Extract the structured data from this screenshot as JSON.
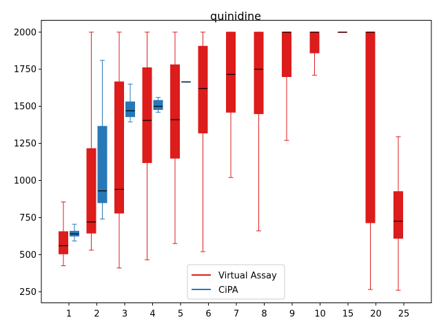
{
  "chart_data": {
    "type": "box",
    "title": "quinidine",
    "xlabel": "",
    "ylabel": "",
    "categories": [
      "1",
      "2",
      "3",
      "4",
      "5",
      "6",
      "7",
      "8",
      "9",
      "10",
      "15",
      "20",
      "25"
    ],
    "ylim": [
      175,
      2080
    ],
    "yticks": [
      250,
      500,
      750,
      1000,
      1250,
      1500,
      1750,
      2000
    ],
    "grid": false,
    "legend_position": "lower-center",
    "series": [
      {
        "name": "Virtual Assay",
        "color": "#dd1c1c",
        "boxes": [
          {
            "category": "1",
            "whisker_low": 425,
            "q1": 505,
            "median": 560,
            "q3": 655,
            "whisker_high": 855
          },
          {
            "category": "2",
            "whisker_low": 530,
            "q1": 645,
            "median": 720,
            "q3": 1215,
            "whisker_high": 2000
          },
          {
            "category": "3",
            "whisker_low": 410,
            "q1": 780,
            "median": 940,
            "q3": 1665,
            "whisker_high": 2000
          },
          {
            "category": "4",
            "whisker_low": 465,
            "q1": 1120,
            "median": 1405,
            "q3": 1760,
            "whisker_high": 2000
          },
          {
            "category": "5",
            "whisker_low": 575,
            "q1": 1150,
            "median": 1410,
            "q3": 1780,
            "whisker_high": 2000
          },
          {
            "category": "6",
            "whisker_low": 520,
            "q1": 1320,
            "median": 1620,
            "q3": 1905,
            "whisker_high": 2000
          },
          {
            "category": "7",
            "whisker_low": 1020,
            "q1": 1460,
            "median": 1715,
            "q3": 2000,
            "whisker_high": 2000
          },
          {
            "category": "8",
            "whisker_low": 660,
            "q1": 1450,
            "median": 1750,
            "q3": 2000,
            "whisker_high": 2000
          },
          {
            "category": "9",
            "whisker_low": 1270,
            "q1": 1700,
            "median": 2000,
            "q3": 2000,
            "whisker_high": 2000
          },
          {
            "category": "10",
            "whisker_low": 1710,
            "q1": 1860,
            "median": 2000,
            "q3": 2000,
            "whisker_high": 2000
          },
          {
            "category": "15",
            "whisker_low": 2000,
            "q1": 2000,
            "median": 2000,
            "q3": 2000,
            "whisker_high": 2000
          },
          {
            "category": "20",
            "whisker_low": 265,
            "q1": 715,
            "median": 2000,
            "q3": 2000,
            "whisker_high": 2000
          },
          {
            "category": "25",
            "whisker_low": 260,
            "q1": 610,
            "median": 725,
            "q3": 925,
            "whisker_high": 1295
          }
        ]
      },
      {
        "name": "CiPA",
        "color": "#2878b8",
        "boxes": [
          {
            "category": "1",
            "whisker_low": 592,
            "q1": 625,
            "median": 640,
            "q3": 658,
            "whisker_high": 705
          },
          {
            "category": "2",
            "whisker_low": 740,
            "q1": 850,
            "median": 930,
            "q3": 1365,
            "whisker_high": 1810
          },
          {
            "category": "3",
            "whisker_low": 1395,
            "q1": 1430,
            "median": 1470,
            "q3": 1530,
            "whisker_high": 1650
          },
          {
            "category": "4",
            "whisker_low": 1460,
            "q1": 1478,
            "median": 1500,
            "q3": 1540,
            "whisker_high": 1560
          },
          {
            "category": "5",
            "whisker_low": 1665,
            "q1": 1665,
            "median": 1665,
            "q3": 1665,
            "whisker_high": 1665
          }
        ]
      }
    ]
  }
}
